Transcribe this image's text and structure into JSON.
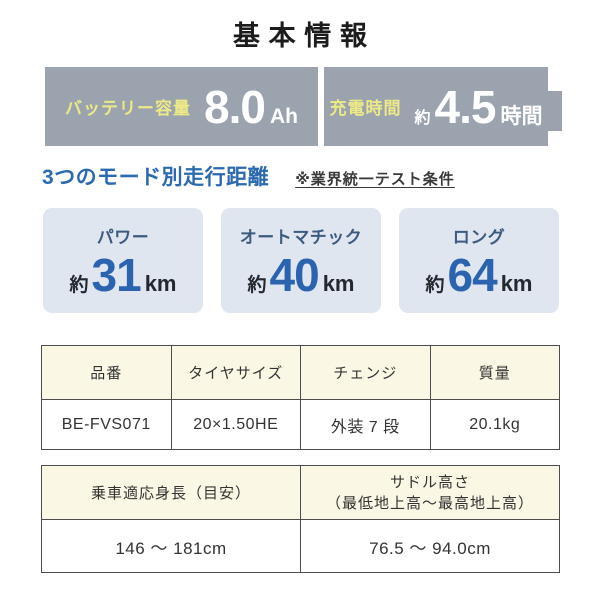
{
  "page": {
    "title": "基本情報"
  },
  "banner": {
    "bg_color": "#9aa3ae",
    "label_color": "#ece986",
    "text_color": "#ffffff",
    "battery": {
      "label": "バッテリー容量",
      "value": "8.0",
      "unit": "Ah"
    },
    "charge": {
      "label": "充電時間",
      "approx": "約",
      "value": "4.5",
      "unit": "時間"
    }
  },
  "modes": {
    "heading": "3つのモード別走行距離",
    "heading_color": "#2c6ab0",
    "note": "※業界統一テスト条件",
    "card_bg_color": "#dfe6f0",
    "label_color": "#3d5a7f",
    "value_color": "#2c63ae",
    "cards": [
      {
        "label": "パワー",
        "approx": "約",
        "value": "31",
        "unit": "km"
      },
      {
        "label": "オートマチック",
        "approx": "約",
        "value": "40",
        "unit": "km"
      },
      {
        "label": "ロング",
        "approx": "約",
        "value": "64",
        "unit": "km"
      }
    ]
  },
  "spec_table": {
    "header_bg_color": "#faf7e4",
    "border_color": "#4d4d4d",
    "headers": [
      "品番",
      "タイヤサイズ",
      "チェンジ",
      "質量"
    ],
    "values": [
      "BE-FVS071",
      "20×1.50HE",
      "外装 7 段",
      "20.1kg"
    ]
  },
  "size_table": {
    "header_bg_color": "#faf7e4",
    "border_color": "#4d4d4d",
    "col1": {
      "header": "乗車適応身長（目安）",
      "value": "146 ～ 181cm"
    },
    "col2": {
      "header_line1": "サドル高さ",
      "header_line2": "（最低地上高～最高地上高）",
      "value": "76.5 ～ 94.0cm"
    }
  }
}
